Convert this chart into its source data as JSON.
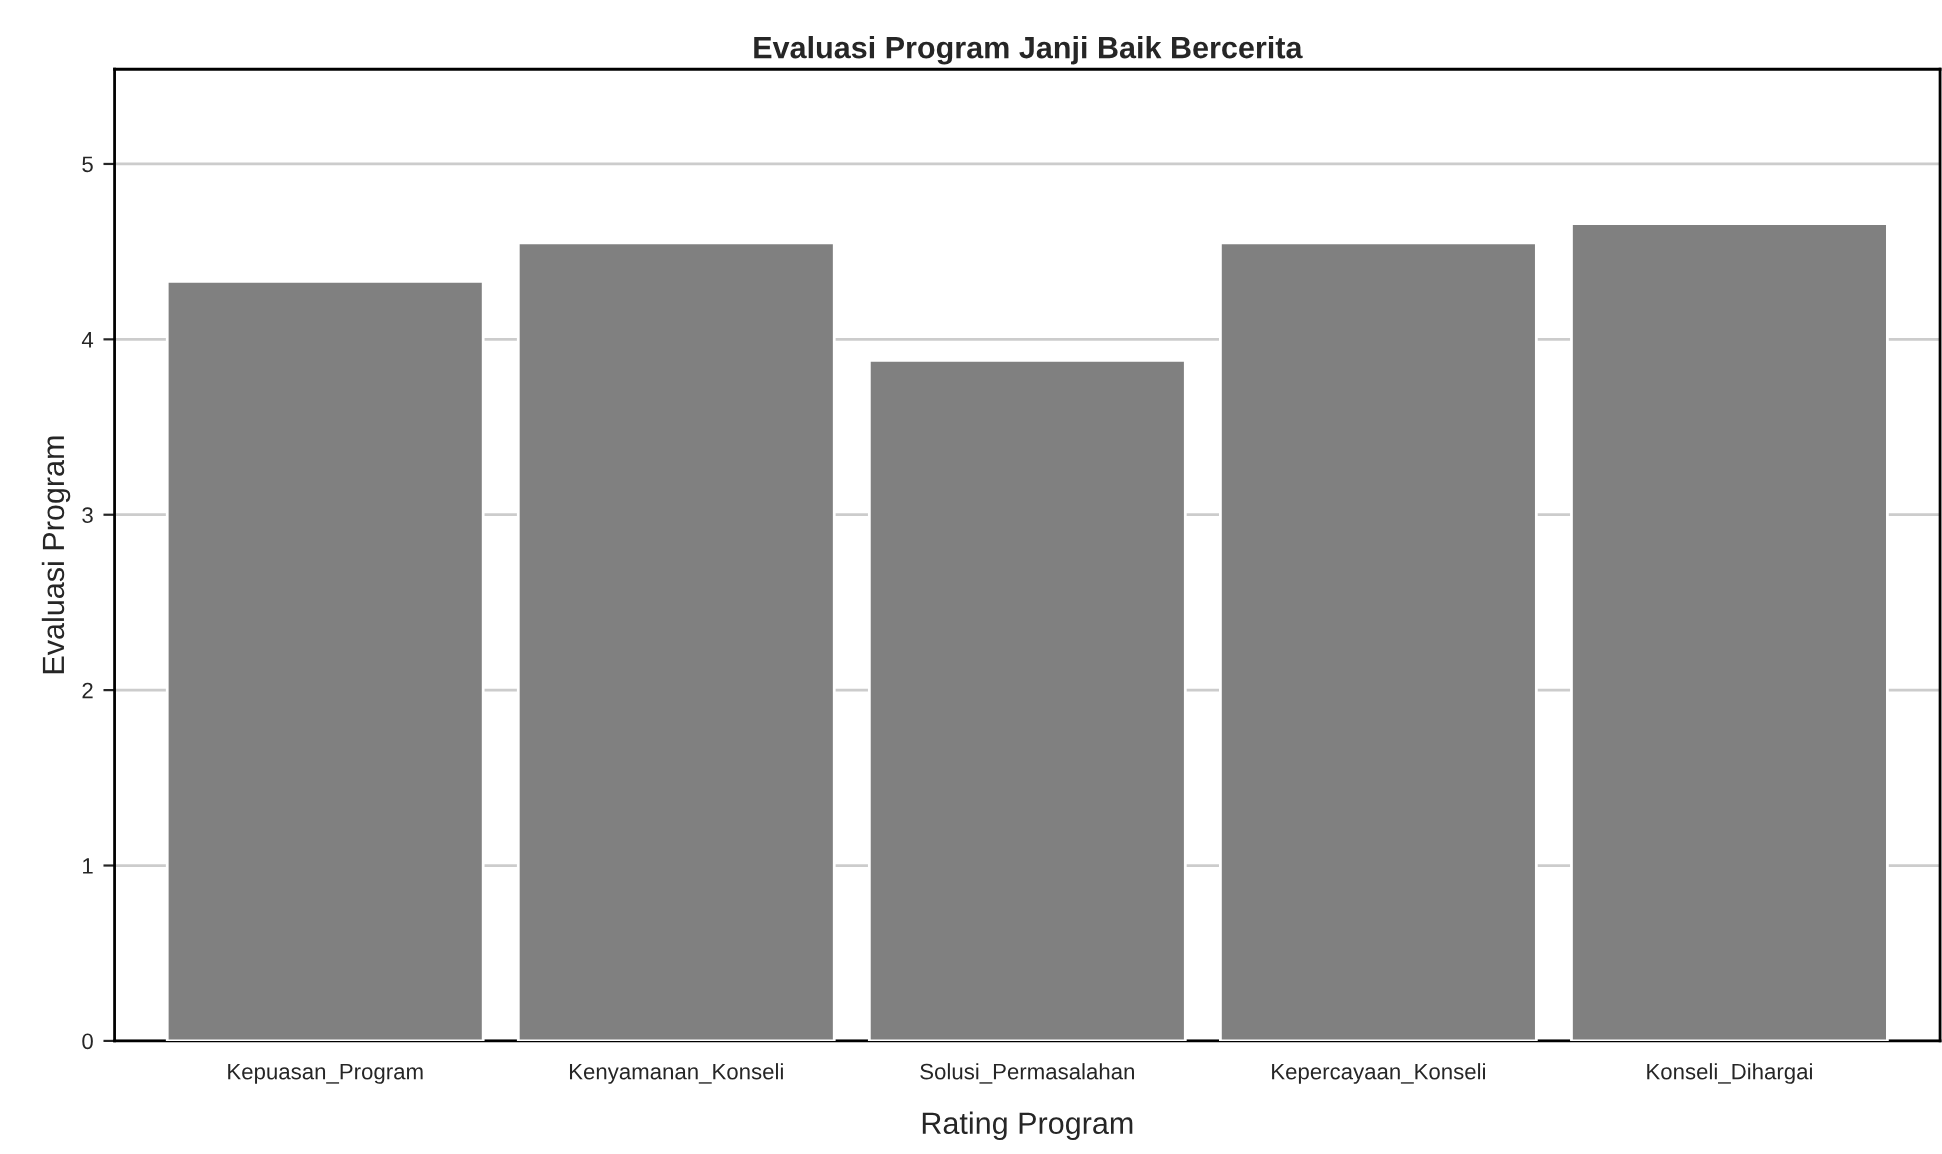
{
  "chart_data": {
    "type": "bar",
    "title": "Evaluasi Program Janji Baik Bercerita",
    "xlabel": "Rating Program",
    "ylabel": "Evaluasi Program",
    "categories": [
      "Kepuasan_Program",
      "Kenyamanan_Konseli",
      "Solusi_Permasalahan",
      "Kepercayaan_Konseli",
      "Konseli_Dihargai"
    ],
    "values": [
      4.33,
      4.55,
      3.88,
      4.55,
      4.66
    ],
    "color": "#808080",
    "ylim": [
      0,
      5.54
    ],
    "yticks": [
      0,
      1,
      2,
      3,
      4,
      5
    ],
    "grid": "y"
  }
}
